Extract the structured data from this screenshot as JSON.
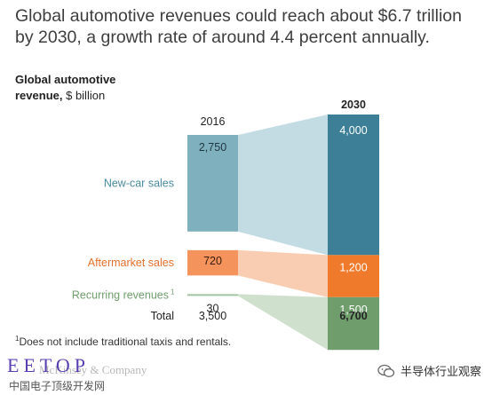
{
  "title": {
    "line1": "Global automotive revenues could reach about $6.7 trillion",
    "line2": "by 2030, a growth rate of around 4.4 percent annually."
  },
  "chart_data": {
    "type": "bar",
    "title": "Global automotive revenue, $ billion",
    "title_bold": "Global automotive",
    "title_line2_bold": "revenue,",
    "title_line2_rest": " $ billion",
    "categories": [
      "2016",
      "2030"
    ],
    "series": [
      {
        "name": "New-car sales",
        "values": [
          2750,
          4000
        ],
        "color_2016": "#7fb0bd",
        "color_2030": "#3d7f97",
        "flow_color": "#c3dce3"
      },
      {
        "name": "Aftermarket sales",
        "values": [
          720,
          1200
        ],
        "color_2016": "#f4935c",
        "color_2030": "#f07a2b",
        "flow_color": "#f9cdb1"
      },
      {
        "name": "Recurring revenues",
        "superscript": "1",
        "values": [
          30,
          1500
        ],
        "color_2016": "#a8c9a6",
        "color_2030": "#6f9e6c",
        "flow_color": "#cfe0cd"
      }
    ],
    "labels_2016": [
      "2,750",
      "720",
      "30"
    ],
    "labels_2030": [
      "4,000",
      "1,200",
      "1,500"
    ],
    "total_label": "Total",
    "totals": [
      "3,500",
      "6,700"
    ]
  },
  "footnote": "Does not include traditional taxis and rentals.",
  "footnote_mark": "1",
  "watermark": {
    "logo": "EETOP",
    "mckinsey": "McKinsey & Company",
    "cn": "中国电子顶级开发网",
    "wechat": "半导体行业观察"
  }
}
